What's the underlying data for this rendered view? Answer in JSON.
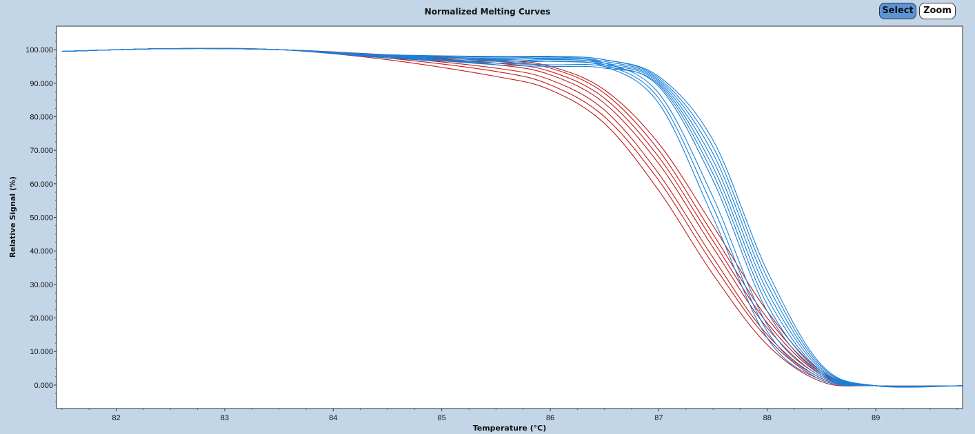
{
  "toolbar": {
    "select_label": "Select",
    "zoom_label": "Zoom"
  },
  "chart_data": {
    "type": "line",
    "title": "Normalized Melting Curves",
    "xlabel": "Temperature (°C)",
    "ylabel": "Relative Signal (%)",
    "xlim": [
      81.45,
      89.8
    ],
    "ylim": [
      -7,
      107
    ],
    "x_ticks": [
      82,
      83,
      84,
      85,
      86,
      87,
      88,
      89
    ],
    "x_tick_labels": [
      "82",
      "83",
      "84",
      "85",
      "86",
      "87",
      "88",
      "89"
    ],
    "y_ticks": [
      0,
      10,
      20,
      30,
      40,
      50,
      60,
      70,
      80,
      90,
      100
    ],
    "y_tick_labels": [
      "0.000",
      "10.000",
      "20.000",
      "30.000",
      "40.000",
      "50.000",
      "60.000",
      "70.000",
      "80.000",
      "90.000",
      "100.000"
    ],
    "grid": false,
    "colors": {
      "group_a": "#c0191c",
      "group_b": "#1a7fd6",
      "background": "#c3d6e7",
      "plot_bg": "#ffffff"
    },
    "series": [
      {
        "group": "group_a",
        "x": [
          81.5,
          82.5,
          83.5,
          84.5,
          85.5,
          86,
          86.5,
          87,
          87.5,
          88,
          88.5,
          89,
          89.8
        ],
        "values": [
          99.5,
          100.3,
          100,
          97,
          92,
          88,
          78,
          58,
          33,
          12,
          1,
          -0.2,
          -0.2
        ]
      },
      {
        "group": "group_a",
        "x": [
          81.5,
          82.5,
          83.5,
          84.5,
          85.5,
          86,
          86.5,
          87,
          87.5,
          88,
          88.5,
          89,
          89.8
        ],
        "values": [
          99.5,
          100.3,
          100,
          97.5,
          93.5,
          89.5,
          80,
          61,
          36,
          14,
          1.5,
          -0.2,
          -0.2
        ]
      },
      {
        "group": "group_a",
        "x": [
          81.5,
          82.5,
          83.5,
          84.5,
          85.5,
          86,
          86.5,
          87,
          87.5,
          88,
          88.5,
          89,
          89.8
        ],
        "values": [
          99.5,
          100.3,
          100,
          97.8,
          94.5,
          91,
          82,
          63,
          38,
          15,
          2,
          -0.2,
          -0.2
        ]
      },
      {
        "group": "group_a",
        "x": [
          81.5,
          82.5,
          83.5,
          84.5,
          85.5,
          86,
          86.5,
          87,
          87.5,
          88,
          88.5,
          89,
          89.8
        ],
        "values": [
          99.5,
          100.3,
          100,
          98,
          95.5,
          92.5,
          84,
          66,
          41,
          17,
          2.5,
          -0.2,
          -0.2
        ]
      },
      {
        "group": "group_a",
        "x": [
          81.5,
          82.5,
          83.5,
          84.5,
          85.5,
          86,
          86.5,
          87,
          87.5,
          88,
          88.5,
          89,
          89.8
        ],
        "values": [
          99.5,
          100.3,
          100,
          98.2,
          96,
          93.5,
          85.5,
          68,
          43,
          18.5,
          3,
          -0.2,
          -0.2
        ]
      },
      {
        "group": "group_a",
        "x": [
          81.5,
          82.5,
          83.5,
          84.5,
          85.5,
          86,
          86.5,
          87,
          87.5,
          88,
          88.5,
          89,
          89.8
        ],
        "values": [
          99.5,
          100.3,
          100,
          98.4,
          96.5,
          94.5,
          87,
          70,
          45,
          20,
          3.5,
          -0.2,
          -0.2
        ]
      },
      {
        "group": "group_a",
        "x": [
          81.5,
          82.5,
          83.5,
          84.5,
          85.5,
          86,
          86.5,
          87,
          87.5,
          88,
          88.5,
          89,
          89.8
        ],
        "values": [
          99.5,
          100.3,
          100,
          98.5,
          97,
          95,
          88,
          72,
          47.5,
          22,
          4,
          -0.2,
          -0.2
        ]
      },
      {
        "group": "group_b",
        "x": [
          81.5,
          82.5,
          83.5,
          84.5,
          85.5,
          86,
          86.5,
          87,
          87.5,
          88,
          88.5,
          89,
          89.8
        ],
        "values": [
          99.5,
          100.3,
          100,
          97.5,
          96,
          96.5,
          95,
          84,
          50,
          14,
          1.5,
          -0.2,
          -0.2
        ]
      },
      {
        "group": "group_b",
        "x": [
          81.5,
          82.5,
          83.5,
          84.5,
          85.5,
          86,
          86.5,
          87,
          87.5,
          88,
          88.5,
          89,
          89.8
        ],
        "values": [
          99.5,
          100.3,
          100,
          97.8,
          96.5,
          97,
          95.5,
          85.5,
          53,
          16,
          2,
          -0.2,
          -0.2
        ]
      },
      {
        "group": "group_b",
        "x": [
          81.5,
          82.5,
          83.5,
          84.5,
          85.5,
          86,
          86.5,
          87,
          87.5,
          88,
          88.5,
          89,
          89.8
        ],
        "values": [
          99.5,
          100.3,
          100,
          98,
          97,
          97.5,
          96,
          87,
          56,
          18,
          2.5,
          -0.2,
          -0.2
        ]
      },
      {
        "group": "group_b",
        "x": [
          81.5,
          82.5,
          83.5,
          84.5,
          85.5,
          86,
          86.5,
          87,
          87.5,
          88,
          88.5,
          89,
          89.8
        ],
        "values": [
          99.5,
          100.3,
          100,
          98,
          96,
          95.5,
          95,
          89,
          61,
          22,
          3,
          -0.2,
          -0.2
        ]
      },
      {
        "group": "group_b",
        "x": [
          81.5,
          82.5,
          83.5,
          84.5,
          85.5,
          86,
          86.5,
          87,
          87.5,
          88,
          88.5,
          89,
          89.8
        ],
        "values": [
          99.5,
          100.3,
          100,
          97.9,
          95.5,
          95,
          94.5,
          89.5,
          63,
          24,
          3.5,
          -0.2,
          -0.2
        ]
      },
      {
        "group": "group_b",
        "x": [
          81.5,
          82.5,
          83.5,
          84.5,
          85.5,
          86,
          86.5,
          87,
          87.5,
          88,
          88.5,
          89,
          89.8
        ],
        "values": [
          99.5,
          100.3,
          100,
          98.1,
          96.8,
          96.5,
          95.5,
          90,
          65,
          26,
          4,
          -0.2,
          -0.2
        ]
      },
      {
        "group": "group_b",
        "x": [
          81.5,
          82.5,
          83.5,
          84.5,
          85.5,
          86,
          86.5,
          87,
          87.5,
          88,
          88.5,
          89,
          89.8
        ],
        "values": [
          99.5,
          100.3,
          100,
          98.3,
          97.2,
          97.2,
          96,
          90.5,
          67,
          28,
          4.5,
          -0.2,
          -0.2
        ]
      },
      {
        "group": "group_b",
        "x": [
          81.5,
          82.5,
          83.5,
          84.5,
          85.5,
          86,
          86.5,
          87,
          87.5,
          88,
          88.5,
          89,
          89.8
        ],
        "values": [
          99.5,
          100.3,
          100,
          98.2,
          97.5,
          97.8,
          96.5,
          91,
          69,
          30,
          5,
          -0.2,
          -0.2
        ]
      },
      {
        "group": "group_b",
        "x": [
          81.5,
          82.5,
          83.5,
          84.5,
          85.5,
          86,
          86.5,
          87,
          87.5,
          88,
          88.5,
          89,
          89.8
        ],
        "values": [
          99.5,
          100.3,
          100,
          98.4,
          97.8,
          98,
          97,
          91.5,
          71,
          32,
          5.5,
          -0.2,
          -0.2
        ]
      },
      {
        "group": "group_b",
        "x": [
          81.5,
          82.5,
          83.5,
          84.5,
          85.5,
          86,
          86.5,
          87,
          87.5,
          88,
          88.5,
          89,
          89.8
        ],
        "values": [
          99.5,
          100.3,
          100,
          98.5,
          98,
          98,
          97,
          92,
          73,
          34,
          6,
          -0.2,
          -0.2
        ]
      }
    ]
  }
}
